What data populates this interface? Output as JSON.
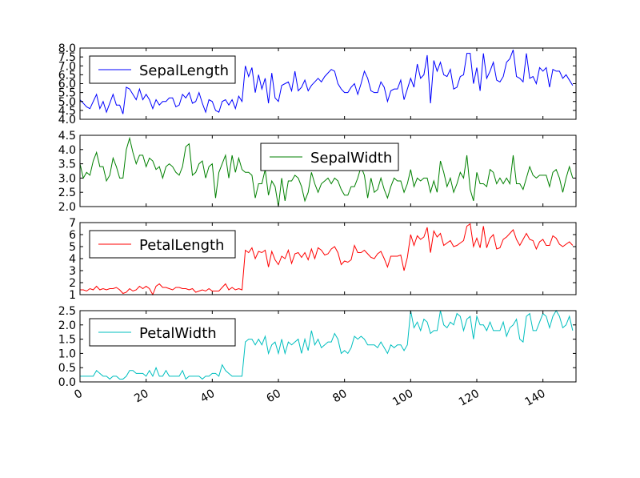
{
  "chart_data": {
    "type": "line",
    "x_ticks": [
      0,
      20,
      40,
      60,
      80,
      100,
      120,
      140
    ],
    "x_range": [
      0,
      150
    ],
    "panels": [
      {
        "name": "SepalLength",
        "color": "#0000ff",
        "ylim": [
          4.0,
          8.0
        ],
        "y_ticks": [
          "4.0",
          "4.5",
          "5.0",
          "5.5",
          "6.0",
          "6.5",
          "7.0",
          "7.5",
          "8.0"
        ],
        "legend_position": "upper-left",
        "values": [
          5.1,
          4.9,
          4.7,
          4.6,
          5.0,
          5.4,
          4.6,
          5.0,
          4.4,
          4.9,
          5.4,
          4.8,
          4.8,
          4.3,
          5.8,
          5.7,
          5.4,
          5.1,
          5.7,
          5.1,
          5.4,
          5.1,
          4.6,
          5.1,
          4.8,
          5.0,
          5.0,
          5.2,
          5.2,
          4.7,
          4.8,
          5.4,
          5.2,
          5.5,
          4.9,
          5.0,
          5.5,
          4.9,
          4.4,
          5.1,
          5.0,
          4.5,
          4.4,
          5.0,
          5.1,
          4.8,
          5.1,
          4.6,
          5.3,
          5.0,
          7.0,
          6.4,
          6.9,
          5.5,
          6.5,
          5.7,
          6.3,
          4.9,
          6.6,
          5.2,
          5.0,
          5.9,
          6.0,
          6.1,
          5.6,
          6.7,
          5.6,
          5.8,
          6.2,
          5.6,
          5.9,
          6.1,
          6.3,
          6.1,
          6.4,
          6.6,
          6.8,
          6.7,
          6.0,
          5.7,
          5.5,
          5.5,
          5.8,
          6.0,
          5.4,
          6.0,
          6.7,
          6.3,
          5.6,
          5.5,
          5.5,
          6.1,
          5.8,
          5.0,
          5.6,
          5.7,
          5.7,
          6.2,
          5.1,
          5.7,
          6.3,
          5.8,
          7.1,
          6.3,
          6.5,
          7.6,
          4.9,
          7.3,
          6.7,
          7.2,
          6.5,
          6.4,
          6.8,
          5.7,
          5.8,
          6.4,
          6.5,
          7.7,
          7.7,
          6.0,
          6.9,
          5.6,
          7.7,
          6.3,
          6.7,
          7.2,
          6.2,
          6.1,
          6.4,
          7.2,
          7.4,
          7.9,
          6.4,
          6.3,
          6.1,
          7.7,
          6.3,
          6.4,
          6.0,
          6.9,
          6.7,
          6.9,
          5.8,
          6.8,
          6.7,
          6.7,
          6.3,
          6.5,
          6.2,
          5.9
        ]
      },
      {
        "name": "SepalWidth",
        "color": "#008000",
        "ylim": [
          2.0,
          4.5
        ],
        "y_ticks": [
          "2.0",
          "2.5",
          "3.0",
          "3.5",
          "4.0",
          "4.5"
        ],
        "legend_position": "upper-center",
        "values": [
          3.5,
          3.0,
          3.2,
          3.1,
          3.6,
          3.9,
          3.4,
          3.4,
          2.9,
          3.1,
          3.7,
          3.4,
          3.0,
          3.0,
          4.0,
          4.4,
          3.9,
          3.5,
          3.8,
          3.8,
          3.4,
          3.7,
          3.6,
          3.3,
          3.4,
          3.0,
          3.4,
          3.5,
          3.4,
          3.2,
          3.1,
          3.4,
          4.1,
          4.2,
          3.1,
          3.2,
          3.5,
          3.6,
          3.0,
          3.4,
          3.5,
          2.3,
          3.2,
          3.5,
          3.8,
          3.0,
          3.8,
          3.2,
          3.7,
          3.3,
          3.2,
          3.2,
          3.1,
          2.3,
          2.8,
          2.8,
          3.3,
          2.4,
          2.9,
          2.7,
          2.0,
          3.0,
          2.2,
          2.9,
          2.9,
          3.1,
          3.0,
          2.7,
          2.2,
          2.5,
          3.2,
          2.8,
          2.5,
          2.8,
          2.9,
          3.0,
          2.8,
          3.0,
          2.9,
          2.6,
          2.4,
          2.4,
          2.7,
          2.7,
          3.0,
          3.4,
          3.1,
          2.3,
          3.0,
          2.5,
          2.6,
          3.0,
          2.6,
          2.3,
          2.7,
          3.0,
          2.9,
          2.9,
          2.5,
          2.8,
          3.3,
          2.7,
          3.0,
          2.9,
          3.0,
          3.0,
          2.5,
          2.9,
          2.5,
          3.6,
          3.2,
          2.7,
          3.0,
          2.5,
          2.8,
          3.2,
          3.0,
          3.8,
          2.6,
          2.2,
          3.2,
          2.8,
          2.8,
          2.7,
          3.3,
          3.2,
          2.8,
          3.0,
          2.8,
          3.0,
          2.8,
          3.8,
          2.8,
          2.8,
          2.6,
          3.0,
          3.4,
          3.1,
          3.0,
          3.1,
          3.1,
          3.1,
          2.7,
          3.2,
          3.3,
          3.0,
          2.5,
          3.0,
          3.4,
          3.0
        ]
      },
      {
        "name": "PetalLength",
        "color": "#ff0000",
        "ylim": [
          1,
          7
        ],
        "y_ticks": [
          "1",
          "2",
          "3",
          "4",
          "5",
          "6",
          "7"
        ],
        "legend_position": "upper-left",
        "values": [
          1.4,
          1.4,
          1.3,
          1.5,
          1.4,
          1.7,
          1.4,
          1.5,
          1.4,
          1.5,
          1.5,
          1.6,
          1.4,
          1.1,
          1.2,
          1.5,
          1.3,
          1.4,
          1.7,
          1.5,
          1.7,
          1.5,
          1.0,
          1.7,
          1.9,
          1.6,
          1.6,
          1.5,
          1.4,
          1.6,
          1.6,
          1.5,
          1.5,
          1.4,
          1.5,
          1.2,
          1.3,
          1.4,
          1.3,
          1.5,
          1.3,
          1.3,
          1.3,
          1.6,
          1.9,
          1.4,
          1.6,
          1.4,
          1.5,
          1.4,
          4.7,
          4.5,
          4.9,
          4.0,
          4.6,
          4.5,
          4.7,
          3.3,
          4.6,
          3.9,
          3.5,
          4.2,
          4.0,
          4.7,
          3.6,
          4.4,
          4.5,
          4.1,
          4.5,
          3.9,
          4.8,
          4.0,
          4.9,
          4.7,
          4.3,
          4.4,
          4.8,
          5.0,
          4.5,
          3.5,
          3.8,
          3.7,
          3.9,
          5.1,
          4.5,
          4.5,
          4.7,
          4.4,
          4.1,
          4.0,
          4.4,
          4.6,
          4.0,
          3.3,
          4.2,
          4.2,
          4.2,
          4.3,
          3.0,
          4.1,
          6.0,
          5.1,
          5.9,
          5.6,
          5.8,
          6.6,
          4.5,
          6.3,
          5.8,
          6.1,
          5.1,
          5.3,
          5.5,
          5.0,
          5.1,
          5.3,
          5.5,
          6.7,
          6.9,
          5.0,
          5.7,
          4.9,
          6.7,
          4.9,
          5.7,
          6.0,
          4.8,
          4.9,
          5.6,
          5.8,
          6.1,
          6.4,
          5.6,
          5.1,
          5.6,
          6.1,
          5.6,
          5.5,
          4.8,
          5.4,
          5.6,
          5.1,
          5.1,
          5.9,
          5.7,
          5.2,
          5.0,
          5.2,
          5.4,
          5.1
        ]
      },
      {
        "name": "PetalWidth",
        "color": "#00bfbf",
        "ylim": [
          0.0,
          2.5
        ],
        "y_ticks": [
          "0.0",
          "0.5",
          "1.0",
          "1.5",
          "2.0",
          "2.5"
        ],
        "legend_position": "upper-left",
        "values": [
          0.2,
          0.2,
          0.2,
          0.2,
          0.2,
          0.4,
          0.3,
          0.2,
          0.2,
          0.1,
          0.2,
          0.2,
          0.1,
          0.1,
          0.2,
          0.4,
          0.4,
          0.3,
          0.3,
          0.3,
          0.2,
          0.4,
          0.2,
          0.5,
          0.2,
          0.2,
          0.4,
          0.2,
          0.2,
          0.2,
          0.2,
          0.4,
          0.1,
          0.2,
          0.2,
          0.2,
          0.2,
          0.1,
          0.2,
          0.2,
          0.3,
          0.3,
          0.2,
          0.6,
          0.4,
          0.3,
          0.2,
          0.2,
          0.2,
          0.2,
          1.4,
          1.5,
          1.5,
          1.3,
          1.5,
          1.3,
          1.6,
          1.0,
          1.3,
          1.4,
          1.0,
          1.5,
          1.0,
          1.4,
          1.3,
          1.4,
          1.5,
          1.0,
          1.5,
          1.1,
          1.8,
          1.3,
          1.5,
          1.2,
          1.3,
          1.4,
          1.4,
          1.7,
          1.5,
          1.0,
          1.1,
          1.0,
          1.2,
          1.6,
          1.5,
          1.6,
          1.5,
          1.3,
          1.3,
          1.3,
          1.2,
          1.4,
          1.2,
          1.0,
          1.3,
          1.2,
          1.3,
          1.3,
          1.1,
          1.3,
          2.5,
          1.9,
          2.1,
          1.8,
          2.2,
          2.1,
          1.7,
          1.8,
          1.8,
          2.5,
          2.0,
          1.9,
          2.1,
          2.0,
          2.4,
          2.3,
          1.8,
          2.2,
          2.3,
          1.5,
          2.3,
          2.0,
          2.0,
          1.8,
          2.1,
          1.8,
          1.8,
          1.8,
          2.1,
          1.6,
          1.9,
          2.0,
          2.2,
          1.5,
          1.4,
          2.3,
          2.4,
          1.8,
          1.8,
          2.1,
          2.4,
          2.3,
          1.9,
          2.3,
          2.5,
          2.3,
          1.9,
          2.0,
          2.3,
          1.8
        ]
      }
    ]
  }
}
